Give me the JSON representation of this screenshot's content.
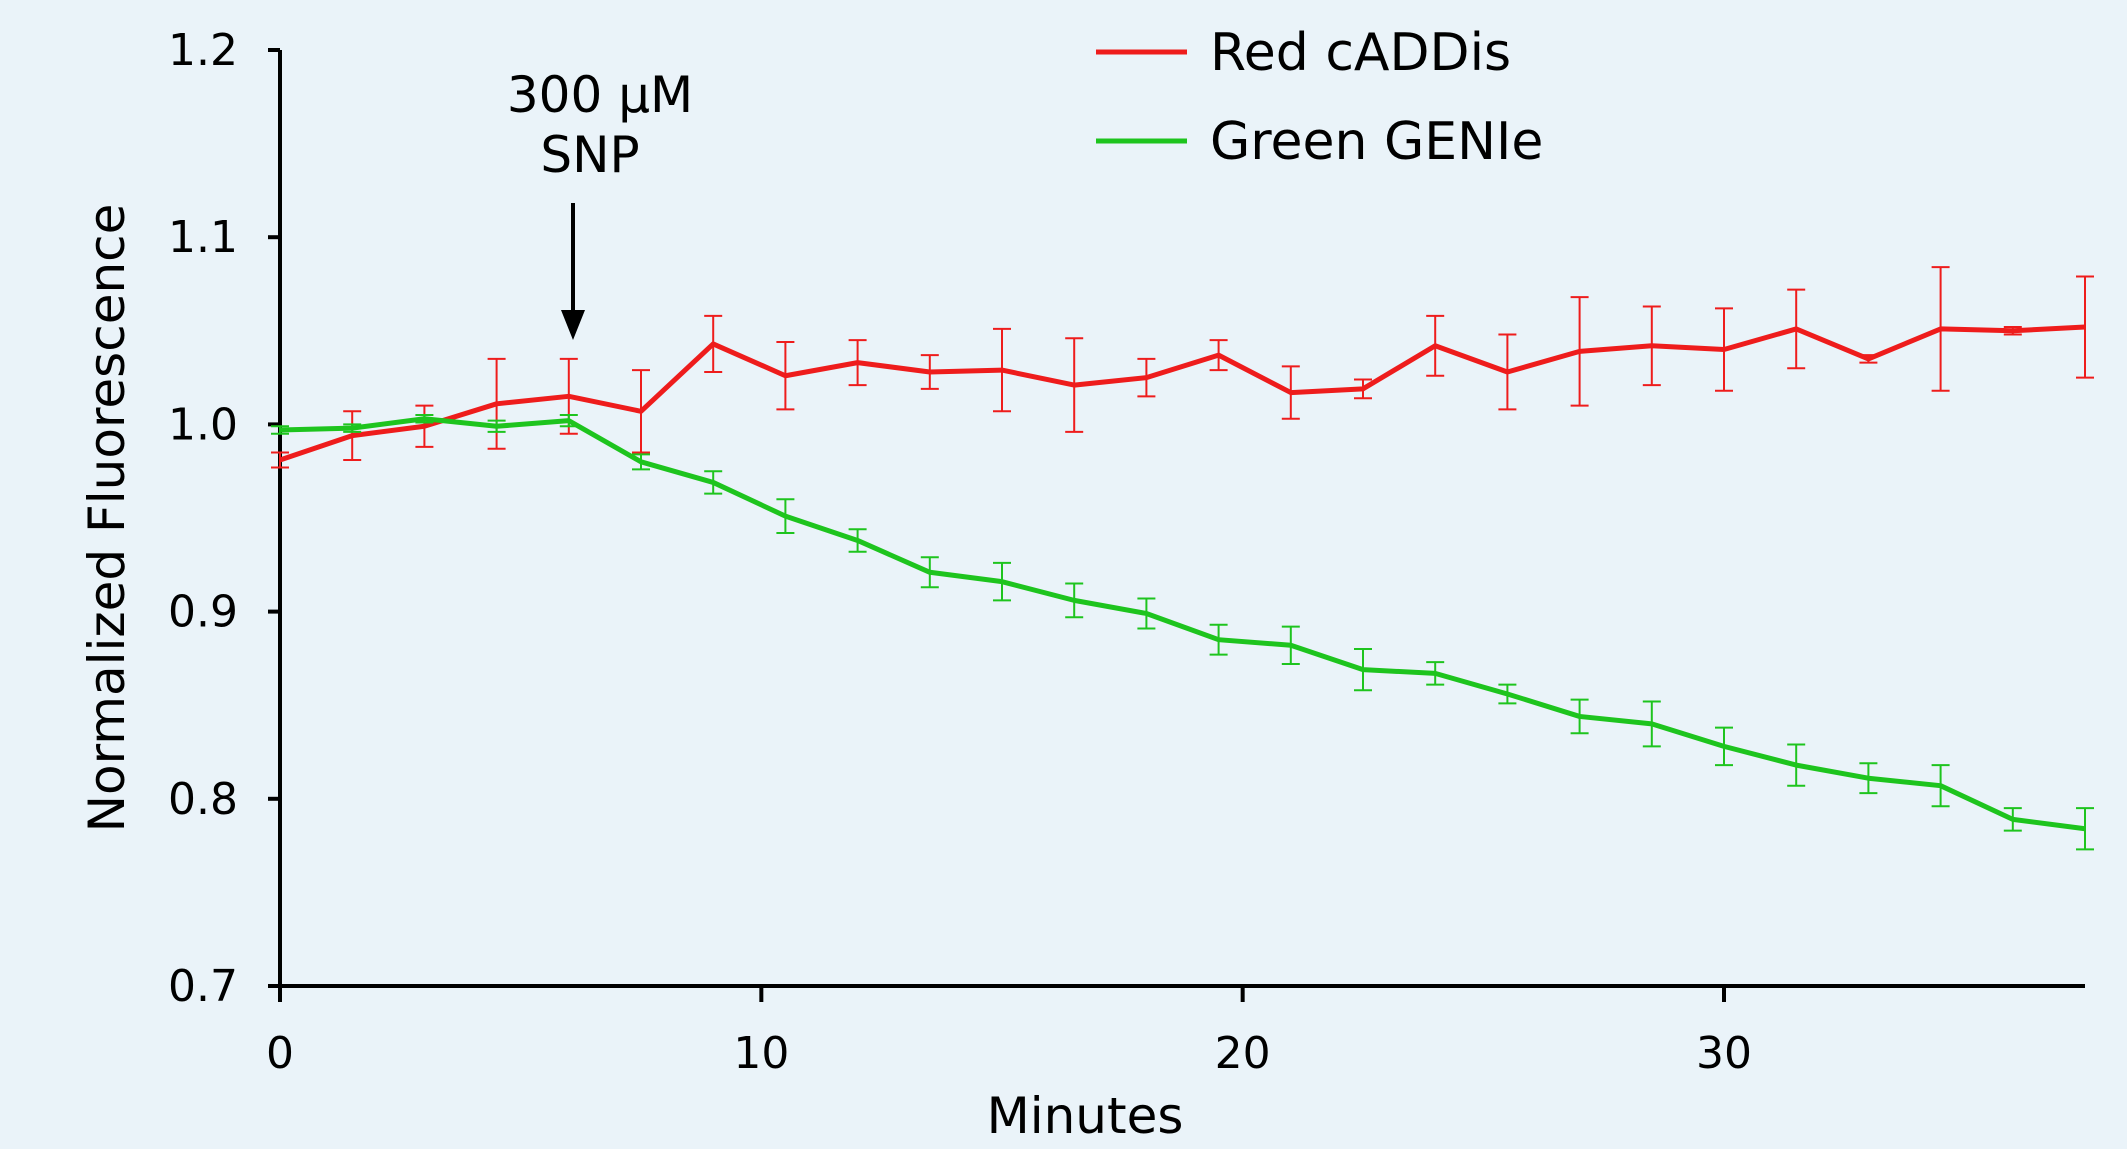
{
  "chart_data": {
    "type": "line",
    "title": "",
    "xlabel": "Minutes",
    "ylabel": "Normalized Fluorescence",
    "xlim": [
      0,
      37.5
    ],
    "ylim": [
      0.7,
      1.2
    ],
    "xticks": [
      "0",
      "10",
      "20",
      "30"
    ],
    "yticks": [
      "0.7",
      "0.8",
      "0.9",
      "1.0",
      "1.1",
      "1.2"
    ],
    "grid": false,
    "legend": "top-center",
    "annotation": {
      "line1": "300 µM",
      "line2": "SNP",
      "x": 6
    },
    "x": [
      0,
      1.5,
      3,
      4.5,
      6,
      7.5,
      9,
      10.5,
      12,
      13.5,
      15,
      16.5,
      18,
      19.5,
      21,
      22.5,
      24,
      25.5,
      27,
      28.5,
      30,
      31.5,
      33,
      34.5,
      36,
      37.5
    ],
    "series": [
      {
        "name": "Red cADDis",
        "color": "#ee1c1c",
        "values": [
          0.981,
          0.994,
          0.999,
          1.011,
          1.015,
          1.007,
          1.043,
          1.026,
          1.033,
          1.028,
          1.029,
          1.021,
          1.025,
          1.037,
          1.017,
          1.019,
          1.042,
          1.028,
          1.039,
          1.042,
          1.04,
          1.051,
          1.035,
          1.051,
          1.05,
          1.052
        ],
        "errors": [
          0.004,
          0.013,
          0.011,
          0.024,
          0.02,
          0.022,
          0.015,
          0.018,
          0.012,
          0.009,
          0.022,
          0.025,
          0.01,
          0.008,
          0.014,
          0.005,
          0.016,
          0.02,
          0.029,
          0.021,
          0.022,
          0.021,
          0.002,
          0.033,
          0.002,
          0.027
        ]
      },
      {
        "name": "Green GENIe",
        "color": "#1ec41e",
        "values": [
          0.997,
          0.998,
          1.003,
          0.999,
          1.002,
          0.98,
          0.969,
          0.951,
          0.938,
          0.921,
          0.916,
          0.906,
          0.899,
          0.885,
          0.882,
          0.869,
          0.867,
          0.856,
          0.844,
          0.84,
          0.828,
          0.818,
          0.811,
          0.807,
          0.789,
          0.784
        ],
        "errors": [
          0.002,
          0.002,
          0.002,
          0.003,
          0.003,
          0.004,
          0.006,
          0.009,
          0.006,
          0.008,
          0.01,
          0.009,
          0.008,
          0.008,
          0.01,
          0.011,
          0.006,
          0.005,
          0.009,
          0.012,
          0.01,
          0.011,
          0.008,
          0.011,
          0.006,
          0.011
        ]
      }
    ]
  }
}
